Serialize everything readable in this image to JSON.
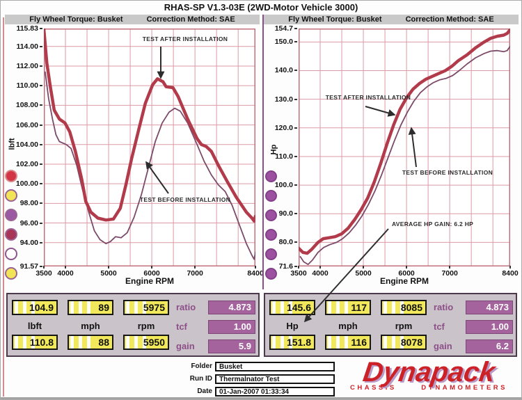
{
  "title": "RHAS-SP V1.3-03E (2WD-Motor Vehicle 3000)",
  "panels": {
    "left": {
      "header_left": "Fly Wheel Torque: Busket",
      "header_right": "Correction Method: SAE"
    },
    "right": {
      "header_left": "Fly Wheel Torque: Busket",
      "header_right": "Correction Method: SAE"
    }
  },
  "annotations": {
    "after_l": "TEST AFTER INSTALLATION",
    "before_l": "TEST BEFORE INSTALLATION",
    "after_r": "TEST AFTER INSTALLATION",
    "before_r": "TEST BEFORE INSTALLATION",
    "gain_r": "AVERAGE HP GAIN: 6.2 HP"
  },
  "chart_data": [
    {
      "type": "line",
      "title": "Fly Wheel Torque: Busket",
      "xlabel": "Engine RPM",
      "ylabel": "lbft",
      "xlim": [
        3500,
        8400
      ],
      "ylim": [
        91.57,
        115.83
      ],
      "grid": true,
      "grid_x_step": 500,
      "grid_color": "#dc9aa6",
      "border_color": "#c2717c",
      "x_ticks": [
        {
          "v": 3500,
          "label": "3500"
        },
        {
          "v": 4000,
          "label": "4000"
        },
        {
          "v": 5000,
          "label": "5000"
        },
        {
          "v": 6000,
          "label": "6000"
        },
        {
          "v": 7000,
          "label": "7000"
        },
        {
          "v": 8400,
          "label": "8400"
        }
      ],
      "y_ticks": [
        {
          "v": 115.83,
          "label": "115.83",
          "grid": false
        },
        {
          "v": 114,
          "label": "114.00"
        },
        {
          "v": 112,
          "label": "112.00"
        },
        {
          "v": 110,
          "label": "110.00"
        },
        {
          "v": 108,
          "label": "108.00"
        },
        {
          "v": 106,
          "label": "106.00"
        },
        {
          "v": 104,
          "label": "104.00"
        },
        {
          "v": 102,
          "label": "102.00"
        },
        {
          "v": 100,
          "label": "100.00"
        },
        {
          "v": 98,
          "label": "98.00"
        },
        {
          "v": 96,
          "label": "96.00"
        },
        {
          "v": 94,
          "label": "94.00"
        },
        {
          "v": 91.57,
          "label": "91.57",
          "grid": false
        }
      ],
      "series": [
        {
          "name": "TEST AFTER INSTALLATION",
          "color": "#b23b4b",
          "width": 4.5,
          "points": [
            [
              3500,
              115.8
            ],
            [
              3570,
              112.3
            ],
            [
              3650,
              109.9
            ],
            [
              3740,
              107.5
            ],
            [
              3860,
              106.6
            ],
            [
              3990,
              106.2
            ],
            [
              4100,
              105.3
            ],
            [
              4230,
              103.3
            ],
            [
              4380,
              100.4
            ],
            [
              4470,
              98.2
            ],
            [
              4590,
              97.1
            ],
            [
              4750,
              96.5
            ],
            [
              4940,
              96.3
            ],
            [
              5110,
              96.4
            ],
            [
              5270,
              97.5
            ],
            [
              5400,
              99.9
            ],
            [
              5530,
              102.5
            ],
            [
              5690,
              105.4
            ],
            [
              5850,
              108.2
            ],
            [
              6020,
              110.1
            ],
            [
              6130,
              110.7
            ],
            [
              6260,
              110.4
            ],
            [
              6330,
              109.9
            ],
            [
              6490,
              109.8
            ],
            [
              6610,
              108.9
            ],
            [
              6830,
              106.6
            ],
            [
              7050,
              104.6
            ],
            [
              7150,
              104.0
            ],
            [
              7260,
              103.8
            ],
            [
              7380,
              103.3
            ],
            [
              7540,
              101.9
            ],
            [
              7750,
              100.2
            ],
            [
              7960,
              98.6
            ],
            [
              8190,
              97.1
            ],
            [
              8320,
              96.5
            ],
            [
              8370,
              96.2
            ],
            [
              8400,
              96.7
            ]
          ]
        },
        {
          "name": "TEST BEFORE INSTALLATION",
          "color": "#7b4a69",
          "width": 1.8,
          "points": [
            [
              3530,
              111.4
            ],
            [
              3610,
              108.7
            ],
            [
              3700,
              106.6
            ],
            [
              3780,
              105.0
            ],
            [
              3860,
              104.3
            ],
            [
              4020,
              104.0
            ],
            [
              4130,
              103.6
            ],
            [
              4260,
              101.9
            ],
            [
              4390,
              99.5
            ],
            [
              4540,
              97.1
            ],
            [
              4670,
              95.2
            ],
            [
              4800,
              94.3
            ],
            [
              4940,
              93.9
            ],
            [
              5040,
              94.1
            ],
            [
              5160,
              94.6
            ],
            [
              5290,
              94.5
            ],
            [
              5430,
              95.0
            ],
            [
              5590,
              96.6
            ],
            [
              5760,
              98.9
            ],
            [
              5920,
              101.6
            ],
            [
              6080,
              104.3
            ],
            [
              6240,
              106.2
            ],
            [
              6400,
              107.3
            ],
            [
              6530,
              107.7
            ],
            [
              6660,
              107.4
            ],
            [
              6830,
              106.2
            ],
            [
              7050,
              104.0
            ],
            [
              7210,
              102.3
            ],
            [
              7380,
              100.9
            ],
            [
              7540,
              99.9
            ],
            [
              7700,
              99.2
            ],
            [
              7860,
              97.8
            ],
            [
              8030,
              95.8
            ],
            [
              8190,
              93.9
            ],
            [
              8320,
              92.7
            ],
            [
              8370,
              92.3
            ],
            [
              8400,
              93.0
            ]
          ]
        }
      ]
    },
    {
      "type": "line",
      "title": "Fly Wheel Torque: Busket",
      "xlabel": "Engine RPM",
      "ylabel": "Hp",
      "xlim": [
        3500,
        8400
      ],
      "ylim": [
        71.6,
        154.7
      ],
      "grid": true,
      "grid_x_step": 500,
      "grid_color": "#dc9aa6",
      "border_color": "#c2717c",
      "x_ticks": [
        {
          "v": 3500,
          "label": "3500"
        },
        {
          "v": 4000,
          "label": "4000"
        },
        {
          "v": 5000,
          "label": "5000"
        },
        {
          "v": 6000,
          "label": "6000"
        },
        {
          "v": 7000,
          "label": "7000"
        },
        {
          "v": 8400,
          "label": "8400"
        }
      ],
      "y_ticks": [
        {
          "v": 154.7,
          "label": "154.7",
          "grid": false
        },
        {
          "v": 150,
          "label": "150.0"
        },
        {
          "v": 140,
          "label": "140.0"
        },
        {
          "v": 130,
          "label": "130.0"
        },
        {
          "v": 120,
          "label": "120.0"
        },
        {
          "v": 110,
          "label": "110.0"
        },
        {
          "v": 100,
          "label": "100.0"
        },
        {
          "v": 90,
          "label": "90.0"
        },
        {
          "v": 80,
          "label": "80.0"
        },
        {
          "v": 71.6,
          "label": "71.6",
          "grid": false
        }
      ],
      "series": [
        {
          "name": "TEST AFTER INSTALLATION",
          "color": "#b23b4b",
          "width": 4.5,
          "points": [
            [
              3500,
              78.0
            ],
            [
              3600,
              76.5
            ],
            [
              3700,
              76.2
            ],
            [
              3800,
              77.5
            ],
            [
              3950,
              80.0
            ],
            [
              4070,
              81.3
            ],
            [
              4200,
              81.6
            ],
            [
              4350,
              82.0
            ],
            [
              4500,
              83.0
            ],
            [
              4650,
              85.0
            ],
            [
              4800,
              88.0
            ],
            [
              4950,
              91.5
            ],
            [
              5100,
              95.5
            ],
            [
              5250,
              101.0
            ],
            [
              5400,
              107.5
            ],
            [
              5550,
              114.5
            ],
            [
              5700,
              121.0
            ],
            [
              5850,
              126.5
            ],
            [
              6000,
              130.5
            ],
            [
              6150,
              133.5
            ],
            [
              6300,
              135.5
            ],
            [
              6450,
              137.0
            ],
            [
              6600,
              138.0
            ],
            [
              6750,
              139.0
            ],
            [
              6900,
              140.0
            ],
            [
              7050,
              141.5
            ],
            [
              7200,
              143.5
            ],
            [
              7400,
              145.5
            ],
            [
              7600,
              148.0
            ],
            [
              7800,
              150.0
            ],
            [
              7950,
              151.3
            ],
            [
              8100,
              152.0
            ],
            [
              8250,
              152.4
            ],
            [
              8330,
              153.0
            ],
            [
              8400,
              154.3
            ]
          ]
        },
        {
          "name": "TEST BEFORE INSTALLATION",
          "color": "#7b4a69",
          "width": 1.8,
          "points": [
            [
              3540,
              75.0
            ],
            [
              3620,
              73.2
            ],
            [
              3720,
              72.3
            ],
            [
              3820,
              73.8
            ],
            [
              3950,
              76.5
            ],
            [
              4080,
              78.2
            ],
            [
              4220,
              79.2
            ],
            [
              4380,
              80.0
            ],
            [
              4520,
              81.3
            ],
            [
              4670,
              83.3
            ],
            [
              4820,
              86.0
            ],
            [
              4970,
              89.3
            ],
            [
              5120,
              93.3
            ],
            [
              5270,
              98.0
            ],
            [
              5420,
              103.5
            ],
            [
              5570,
              109.5
            ],
            [
              5720,
              115.5
            ],
            [
              5870,
              121.0
            ],
            [
              6020,
              125.5
            ],
            [
              6170,
              129.3
            ],
            [
              6320,
              132.3
            ],
            [
              6470,
              134.3
            ],
            [
              6620,
              135.8
            ],
            [
              6770,
              136.8
            ],
            [
              6920,
              137.3
            ],
            [
              7070,
              138.3
            ],
            [
              7220,
              140.0
            ],
            [
              7400,
              142.3
            ],
            [
              7600,
              144.5
            ],
            [
              7800,
              146.0
            ],
            [
              7950,
              146.8
            ],
            [
              8100,
              147.0
            ],
            [
              8250,
              146.6
            ],
            [
              8330,
              147.0
            ],
            [
              8400,
              148.5
            ]
          ]
        }
      ]
    }
  ],
  "legend_dots": {
    "left": [
      {
        "fill": "#d23646",
        "ring": "#d98a8a"
      },
      {
        "fill": "#f1e557",
        "ring": "#9b6292"
      },
      {
        "fill": "#9b59a4",
        "ring": "#9b6292"
      },
      {
        "fill": "#a83558",
        "ring": "#9b6292"
      },
      {
        "fill": "#ffffff",
        "ring": "#8d568d"
      },
      {
        "fill": "#f1e557",
        "ring": "#9b6292"
      }
    ],
    "right": [
      {
        "fill": "#9b51a0",
        "ring": "#84418a"
      },
      {
        "fill": "#9b51a0",
        "ring": "#84418a"
      },
      {
        "fill": "#9b51a0",
        "ring": "#84418a"
      },
      {
        "fill": "#9b51a0",
        "ring": "#84418a"
      },
      {
        "fill": "#9b51a0",
        "ring": "#84418a"
      },
      {
        "fill": "#9b51a0",
        "ring": "#84418a"
      }
    ]
  },
  "readouts": {
    "left": {
      "top": [
        "104.9",
        "89",
        "5975"
      ],
      "units": [
        "lbft",
        "mph",
        "rpm"
      ],
      "bottom": [
        "110.8",
        "88",
        "5950"
      ],
      "side": [
        {
          "label": "ratio",
          "value": "4.873"
        },
        {
          "label": "tcf",
          "value": "1.00"
        },
        {
          "label": "gain",
          "value": "5.9"
        }
      ]
    },
    "right": {
      "top": [
        "145.6",
        "117",
        "8085"
      ],
      "units": [
        "Hp",
        "mph",
        "rpm"
      ],
      "bottom": [
        "151.8",
        "116",
        "8078"
      ],
      "side": [
        {
          "label": "ratio",
          "value": "4.873"
        },
        {
          "label": "tcf",
          "value": "1.00"
        },
        {
          "label": "gain",
          "value": "6.2"
        }
      ]
    }
  },
  "footer": {
    "fields": [
      {
        "label": "Folder",
        "value": "Busket"
      },
      {
        "label": "Run ID",
        "value": "Thermalnator Test"
      },
      {
        "label": "Date",
        "value": "01-Jan-2007 01:33:34"
      }
    ],
    "logo": {
      "name": "Dynapack",
      "sub1": "CHASSIS",
      "sub2": "DYNAMOMETERS",
      "color": "#cc2127",
      "shadow": "#b89bc7"
    }
  }
}
